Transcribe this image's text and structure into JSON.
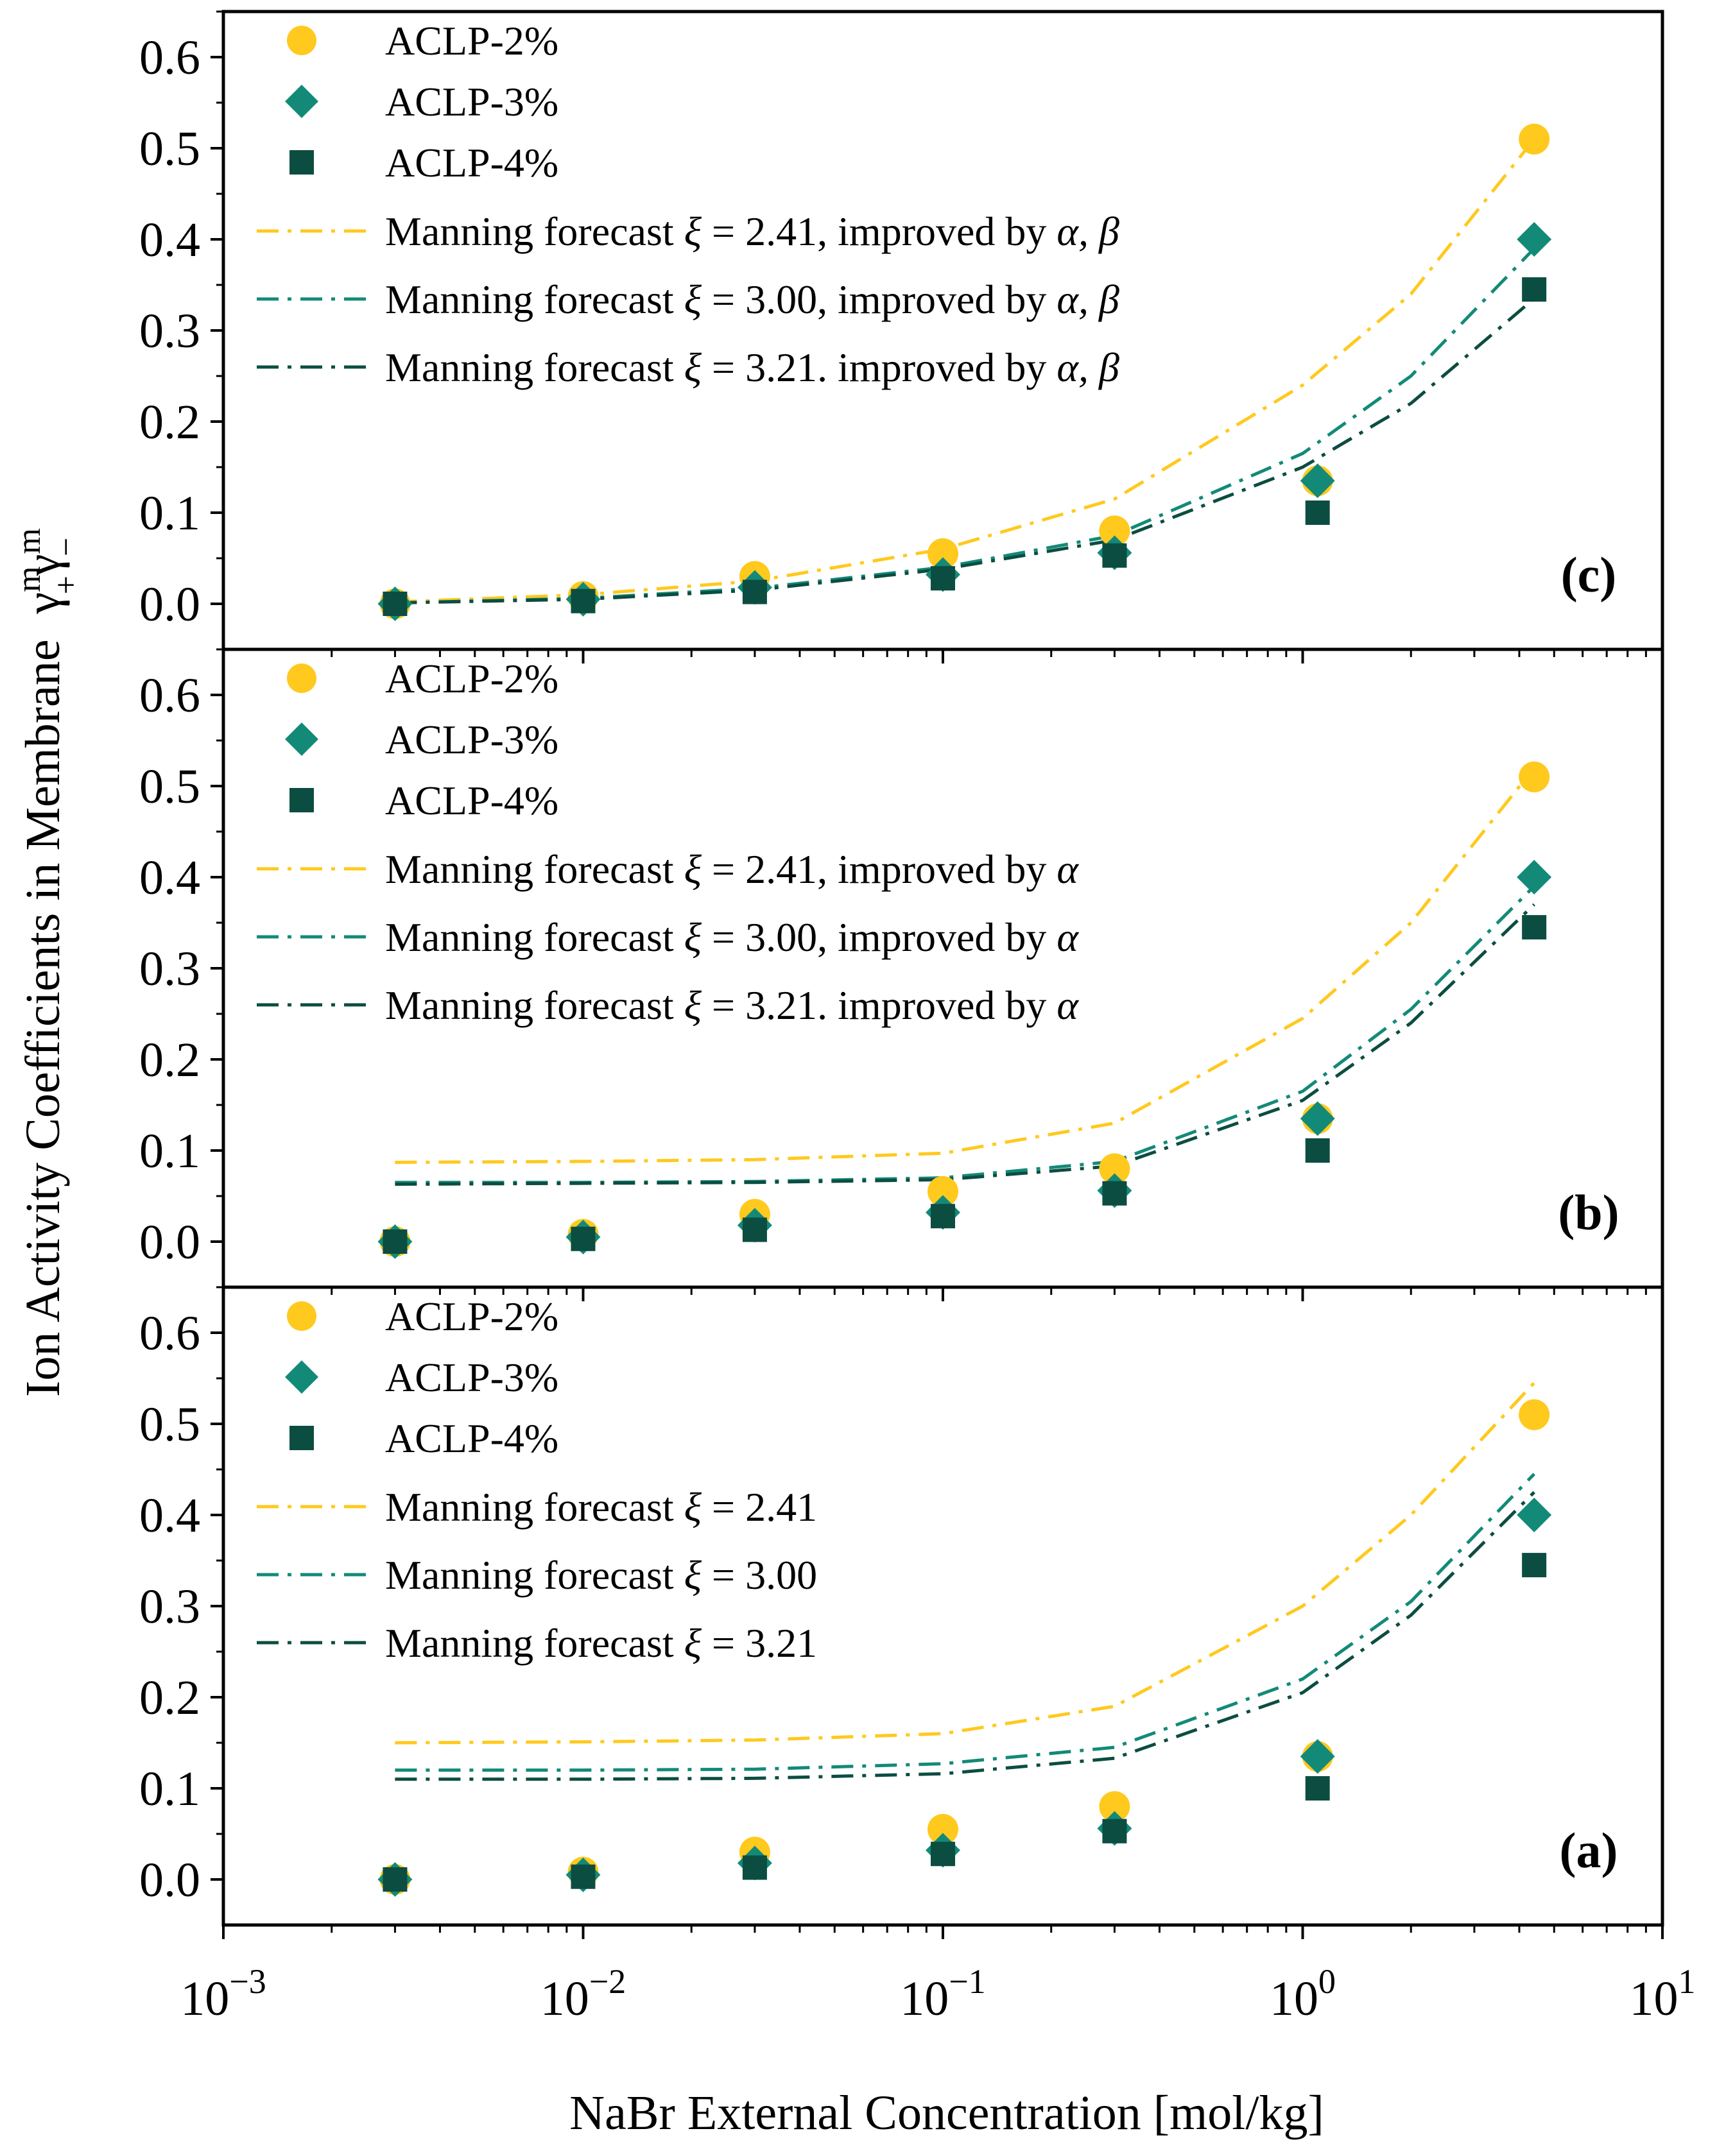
{
  "chart_data": {
    "type": "scatter",
    "x_scale": "log",
    "xlim": [
      0.001,
      10
    ],
    "xlabel": "NaBr External  Concentration [mol/kg]",
    "ylabel": "Ion Activity Coefficients in Membrane",
    "ylabel_symbol": "γ",
    "ylabel_symbol_sup": "m",
    "ylabel_sub_plus": "+",
    "ylabel_sub_minus": "−",
    "x_ticks": [
      {
        "base": "10",
        "exp": "−3",
        "value": 0.001
      },
      {
        "base": "10",
        "exp": "−2",
        "value": 0.01
      },
      {
        "base": "10",
        "exp": "−1",
        "value": 0.1
      },
      {
        "base": "10",
        "exp": "0",
        "value": 1
      },
      {
        "base": "10",
        "exp": "1",
        "value": 10
      }
    ],
    "ylim": [
      -0.05,
      0.65
    ],
    "y_ticks": [
      "0.0",
      "0.1",
      "0.2",
      "0.3",
      "0.4",
      "0.5",
      "0.6"
    ],
    "x": [
      0.003,
      0.01,
      0.03,
      0.1,
      0.3,
      1.1,
      4.4
    ],
    "colors": {
      "ACLP-2%": "#FFC91E",
      "ACLP-3%": "#138A78",
      "ACLP-4%": "#0C4D41"
    },
    "panels": [
      {
        "id": "c",
        "label": "(c)",
        "markers": [
          {
            "name": "ACLP-2%",
            "shape": "circle",
            "values": [
              0.0,
              0.008,
              0.03,
              0.055,
              0.08,
              0.135,
              0.51
            ]
          },
          {
            "name": "ACLP-3%",
            "shape": "diamond",
            "values": [
              0.0,
              0.005,
              0.018,
              0.032,
              0.056,
              0.135,
              0.4
            ]
          },
          {
            "name": "ACLP-4%",
            "shape": "square",
            "values": [
              0.0,
              0.003,
              0.013,
              0.028,
              0.053,
              0.1,
              0.345
            ]
          }
        ],
        "curves": [
          {
            "name": "Manning forecast",
            "xi": "2.41",
            "suffix": ", improved by ",
            "greek": "α, β",
            "color": "#FFC91E",
            "x": [
              0.003,
              0.01,
              0.03,
              0.1,
              0.3,
              1.0,
              2.0,
              4.4
            ],
            "y": [
              0.002,
              0.01,
              0.025,
              0.06,
              0.115,
              0.24,
              0.34,
              0.51
            ]
          },
          {
            "name": "Manning forecast",
            "xi": "3.00",
            "suffix": ", improved by ",
            "greek": "α, β",
            "color": "#138A78",
            "x": [
              0.003,
              0.01,
              0.03,
              0.1,
              0.3,
              1.0,
              2.0,
              4.4
            ],
            "y": [
              0.001,
              0.006,
              0.017,
              0.04,
              0.075,
              0.165,
              0.25,
              0.39
            ]
          },
          {
            "name": "Manning forecast",
            "xi": "3.21",
            "suffix": ". improved by ",
            "greek": "α, β",
            "color": "#0C4D41",
            "x": [
              0.003,
              0.01,
              0.03,
              0.1,
              0.3,
              1.0,
              2.0,
              4.4
            ],
            "y": [
              0.001,
              0.005,
              0.015,
              0.038,
              0.07,
              0.15,
              0.22,
              0.335
            ]
          }
        ]
      },
      {
        "id": "b",
        "label": "(b)",
        "markers": [
          {
            "name": "ACLP-2%",
            "shape": "circle",
            "values": [
              0.0,
              0.008,
              0.03,
              0.055,
              0.08,
              0.135,
              0.51
            ]
          },
          {
            "name": "ACLP-3%",
            "shape": "diamond",
            "values": [
              0.0,
              0.005,
              0.018,
              0.032,
              0.056,
              0.135,
              0.4
            ]
          },
          {
            "name": "ACLP-4%",
            "shape": "square",
            "values": [
              0.0,
              0.003,
              0.013,
              0.028,
              0.053,
              0.1,
              0.345
            ]
          }
        ],
        "curves": [
          {
            "name": "Manning forecast",
            "xi": "2.41",
            "suffix": ", improved by ",
            "greek": "α",
            "color": "#FFC91E",
            "x": [
              0.003,
              0.01,
              0.03,
              0.1,
              0.3,
              1.0,
              2.0,
              4.4
            ],
            "y": [
              0.087,
              0.088,
              0.09,
              0.097,
              0.13,
              0.245,
              0.35,
              0.52
            ]
          },
          {
            "name": "Manning forecast",
            "xi": "3.00",
            "suffix": ", improved by ",
            "greek": "α",
            "color": "#138A78",
            "x": [
              0.003,
              0.01,
              0.03,
              0.1,
              0.3,
              1.0,
              2.0,
              4.4
            ],
            "y": [
              0.065,
              0.065,
              0.066,
              0.07,
              0.088,
              0.165,
              0.255,
              0.39
            ]
          },
          {
            "name": "Manning forecast",
            "xi": "3.21",
            "suffix": ". improved by ",
            "greek": "α",
            "color": "#0C4D41",
            "x": [
              0.003,
              0.01,
              0.03,
              0.1,
              0.3,
              1.0,
              2.0,
              4.4
            ],
            "y": [
              0.063,
              0.064,
              0.065,
              0.068,
              0.083,
              0.155,
              0.24,
              0.37
            ]
          }
        ]
      },
      {
        "id": "a",
        "label": "(a)",
        "markers": [
          {
            "name": "ACLP-2%",
            "shape": "circle",
            "values": [
              0.0,
              0.008,
              0.03,
              0.055,
              0.08,
              0.135,
              0.51
            ]
          },
          {
            "name": "ACLP-3%",
            "shape": "diamond",
            "values": [
              0.0,
              0.005,
              0.018,
              0.032,
              0.056,
              0.135,
              0.4
            ]
          },
          {
            "name": "ACLP-4%",
            "shape": "square",
            "values": [
              0.0,
              0.003,
              0.013,
              0.028,
              0.053,
              0.1,
              0.345
            ]
          }
        ],
        "curves": [
          {
            "name": "Manning forecast",
            "xi": "2.41",
            "suffix": "",
            "greek": "",
            "color": "#FFC91E",
            "x": [
              0.003,
              0.01,
              0.03,
              0.1,
              0.3,
              1.0,
              2.0,
              4.4
            ],
            "y": [
              0.15,
              0.151,
              0.153,
              0.16,
              0.19,
              0.3,
              0.4,
              0.545
            ]
          },
          {
            "name": "Manning forecast",
            "xi": "3.00",
            "suffix": "",
            "greek": "",
            "color": "#138A78",
            "x": [
              0.003,
              0.01,
              0.03,
              0.1,
              0.3,
              1.0,
              2.0,
              4.4
            ],
            "y": [
              0.12,
              0.12,
              0.121,
              0.127,
              0.145,
              0.22,
              0.305,
              0.445
            ]
          },
          {
            "name": "Manning forecast",
            "xi": "3.21",
            "suffix": "",
            "greek": "",
            "color": "#0C4D41",
            "x": [
              0.003,
              0.01,
              0.03,
              0.1,
              0.3,
              1.0,
              2.0,
              4.4
            ],
            "y": [
              0.11,
              0.11,
              0.111,
              0.116,
              0.133,
              0.205,
              0.29,
              0.425
            ]
          }
        ]
      }
    ]
  }
}
